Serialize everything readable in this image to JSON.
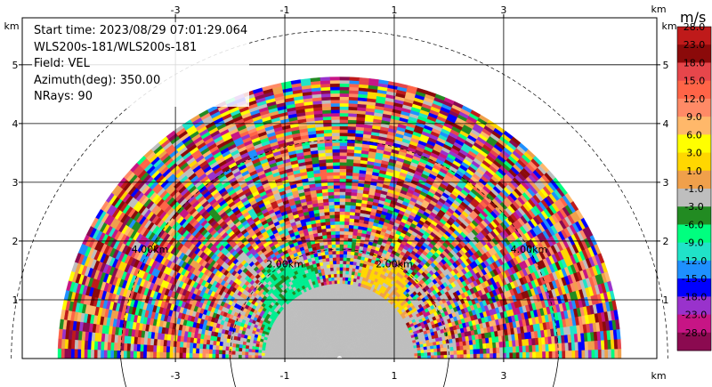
{
  "chart_data": {
    "type": "heatmap",
    "subtype": "radar-rhi-sector",
    "field": "VEL",
    "info_lines": [
      "Start time: 2023/08/29 07:01:29.064",
      "WLS200s-181/WLS200s-181",
      "Field: VEL",
      "Azimuth(deg): 350.00",
      "NRays: 90"
    ],
    "x_axis": {
      "unit_label": "km",
      "range": [
        -5.8,
        5.8
      ],
      "ticks": [
        -3,
        -1,
        1,
        3
      ],
      "tick_labels": [
        "-3",
        "-1",
        "1",
        "3"
      ]
    },
    "y_axis": {
      "unit_label": "km",
      "range": [
        0,
        5.8
      ],
      "ticks": [
        1,
        2,
        3,
        4,
        5
      ],
      "tick_labels": [
        "1",
        "2",
        "3",
        "4",
        "5"
      ]
    },
    "range_ring_labels": [
      {
        "label": "2.00km",
        "angle_deg": 60
      },
      {
        "label": "2.00km",
        "angle_deg": 120
      },
      {
        "label": "4.00km",
        "angle_deg": 30
      },
      {
        "label": "4.00km",
        "angle_deg": 150
      }
    ],
    "range_rings_km": [
      2,
      4,
      6
    ],
    "max_range_km": 5.1,
    "colorbar": {
      "title": "m/s",
      "labels": [
        "28.0",
        "23.0",
        "18.0",
        "15.0",
        "12.0",
        "9.0",
        "6.0",
        "3.0",
        "1.0",
        "-1.0",
        "-3.0",
        "-6.0",
        "-9.0",
        "-12.0",
        "-15.0",
        "-18.0",
        "-23.0",
        "-28.0"
      ],
      "colors": [
        "#bf1a1a",
        "#8b0a0a",
        "#e6464b",
        "#ff6447",
        "#ff8a66",
        "#ffb86a",
        "#ffff00",
        "#ffd700",
        "#f0a04b",
        "#bebebe",
        "#228b22",
        "#00ff7f",
        "#20e3c8",
        "#1e90ff",
        "#0000ff",
        "#9932cc",
        "#c71585",
        "#8b0a50"
      ]
    },
    "near_field_pattern": {
      "negative_region_x_km": [
        -1.4,
        -0.4
      ],
      "positive_region_x_km": [
        0.4,
        1.2
      ],
      "height_km": [
        0,
        1.7
      ]
    }
  }
}
